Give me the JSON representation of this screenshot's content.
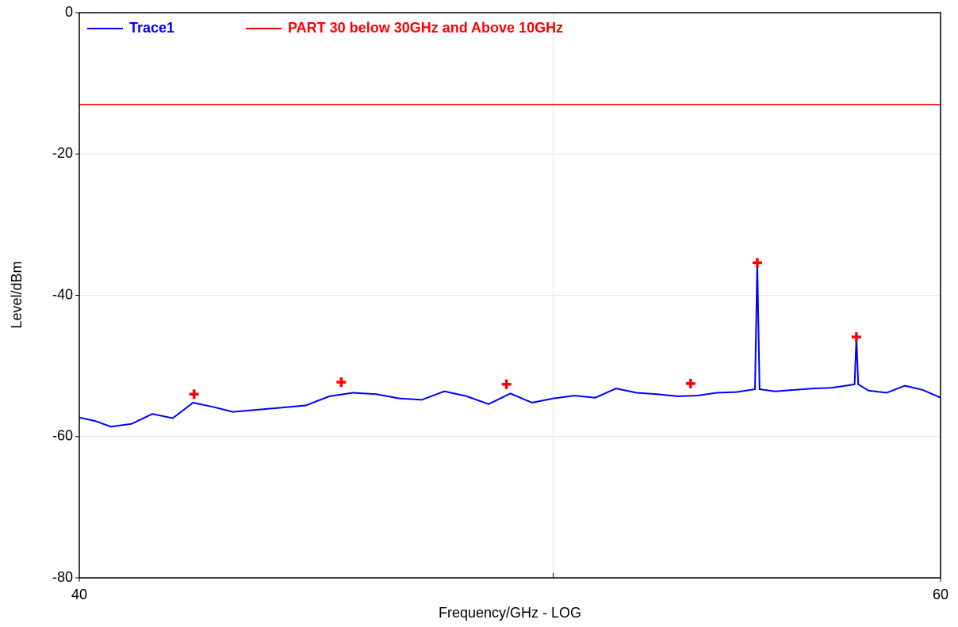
{
  "chart_data": {
    "type": "line",
    "xlabel": "Frequency/GHz - LOG",
    "ylabel": "Level/dBm",
    "xscale": "log",
    "xlim": [
      40,
      60
    ],
    "xticks": [
      40,
      60
    ],
    "xgrid_extra": [
      50
    ],
    "ylim": [
      -80,
      0
    ],
    "yticks": [
      0,
      -20,
      -40,
      -60,
      -80
    ],
    "grid": true,
    "legend": "top-left",
    "series": [
      {
        "name": "Trace1",
        "color": "#0000ff",
        "x": [
          40,
          40.3,
          40.6,
          41,
          41.4,
          41.8,
          42.2,
          42.6,
          43,
          43.5,
          44,
          44.5,
          45,
          45.5,
          46,
          46.5,
          47,
          47.5,
          48,
          48.5,
          49,
          49.5,
          50,
          50.5,
          51,
          51.5,
          52,
          52.5,
          53,
          53.5,
          54,
          54.5,
          54.98,
          55.04,
          55.1,
          55.5,
          56,
          56.5,
          57,
          57.5,
          57.62,
          57.67,
          57.72,
          58,
          58.5,
          59,
          59.5,
          60
        ],
        "values": [
          -57.3,
          -57.8,
          -58.6,
          -58.2,
          -56.8,
          -57.4,
          -55.2,
          -55.8,
          -56.5,
          -56.2,
          -55.9,
          -55.6,
          -54.3,
          -53.8,
          -54.0,
          -54.6,
          -54.8,
          -53.6,
          -54.3,
          -55.4,
          -53.9,
          -55.2,
          -54.6,
          -54.2,
          -54.5,
          -53.2,
          -53.8,
          -54.0,
          -54.3,
          -54.2,
          -53.8,
          -53.7,
          -53.3,
          -35.4,
          -53.3,
          -53.6,
          -53.4,
          -53.2,
          -53.1,
          -52.7,
          -52.6,
          -45.9,
          -52.6,
          -53.5,
          -53.8,
          -52.8,
          -53.4,
          -54.5
        ]
      },
      {
        "name": "PART 30 below 30GHz and Above 10GHz",
        "color": "#ff0000",
        "x": [
          40,
          60
        ],
        "values": [
          -13,
          -13
        ]
      }
    ],
    "markers": {
      "color": "#ff0000",
      "x": [
        42.22,
        45.25,
        48.91,
        53.34,
        55.04,
        57.67
      ],
      "values": [
        -54.0,
        -52.3,
        -52.6,
        -52.5,
        -35.4,
        -45.9
      ]
    }
  }
}
